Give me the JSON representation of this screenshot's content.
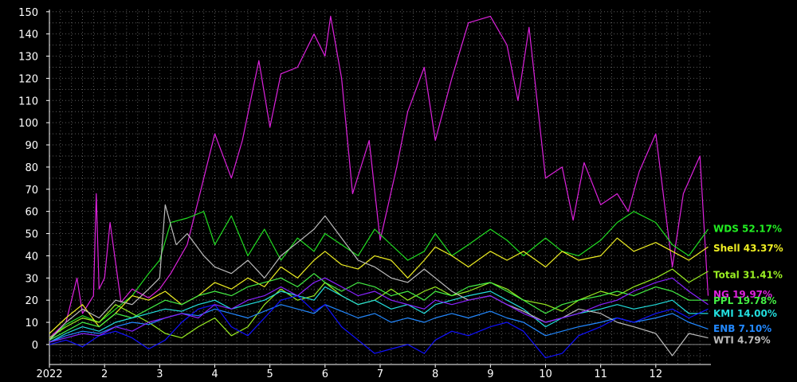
{
  "chart_data": {
    "type": "line",
    "title": "",
    "xlabel": "",
    "ylabel": "",
    "ylim": [
      -9,
      151
    ],
    "xlim": [
      0,
      12
    ],
    "grid": true,
    "legend_position": "right",
    "background": "#000000",
    "y_ticks": [
      0,
      10,
      20,
      30,
      40,
      50,
      60,
      70,
      80,
      90,
      100,
      110,
      120,
      130,
      140,
      150
    ],
    "x_ticks": [
      {
        "label": "2022",
        "x": 0
      },
      {
        "label": "2",
        "x": 1
      },
      {
        "label": "3",
        "x": 2
      },
      {
        "label": "4",
        "x": 3
      },
      {
        "label": "5",
        "x": 4
      },
      {
        "label": "6",
        "x": 5
      },
      {
        "label": "7",
        "x": 6
      },
      {
        "label": "8",
        "x": 7
      },
      {
        "label": "9",
        "x": 8
      },
      {
        "label": "10",
        "x": 9
      },
      {
        "label": "11",
        "x": 10
      },
      {
        "label": "12",
        "x": 11
      }
    ],
    "series": [
      {
        "name": "NG",
        "color": "#dd22dd",
        "x": [
          0,
          0.3,
          0.5,
          0.6,
          0.8,
          0.85,
          0.9,
          1.0,
          1.1,
          1.3,
          1.5,
          1.8,
          2.0,
          2.2,
          2.5,
          2.8,
          3.0,
          3.3,
          3.5,
          3.8,
          4.0,
          4.2,
          4.5,
          4.8,
          5.0,
          5.1,
          5.3,
          5.5,
          5.8,
          6.0,
          6.3,
          6.5,
          6.8,
          7.0,
          7.3,
          7.6,
          8.0,
          8.3,
          8.5,
          8.7,
          9.0,
          9.3,
          9.5,
          9.7,
          10.0,
          10.3,
          10.5,
          10.7,
          11.0,
          11.3,
          11.5,
          11.8,
          11.95
        ],
        "y": [
          3,
          10,
          30,
          14,
          22,
          68,
          25,
          30,
          55,
          19,
          25,
          21,
          25,
          32,
          45,
          75,
          95,
          75,
          92,
          128,
          98,
          122,
          125,
          140,
          130,
          148,
          120,
          68,
          92,
          47,
          80,
          105,
          125,
          92,
          120,
          145,
          148,
          135,
          110,
          143,
          75,
          80,
          56,
          82,
          63,
          68,
          60,
          78,
          95,
          35,
          68,
          85,
          22
        ]
      },
      {
        "name": "WDS",
        "color": "#22dd22",
        "x": [
          0,
          0.3,
          0.6,
          0.9,
          1.2,
          1.5,
          1.8,
          2.0,
          2.2,
          2.5,
          2.8,
          3.0,
          3.3,
          3.6,
          3.9,
          4.2,
          4.5,
          4.8,
          5.0,
          5.3,
          5.6,
          5.9,
          6.2,
          6.5,
          6.8,
          7.0,
          7.3,
          7.6,
          8.0,
          8.3,
          8.6,
          9.0,
          9.3,
          9.6,
          10.0,
          10.3,
          10.6,
          11.0,
          11.3,
          11.6,
          11.95
        ],
        "y": [
          2,
          9,
          13,
          10,
          16,
          22,
          32,
          38,
          55,
          57,
          60,
          45,
          58,
          40,
          52,
          38,
          48,
          42,
          50,
          45,
          40,
          52,
          45,
          38,
          42,
          50,
          40,
          45,
          52,
          47,
          40,
          48,
          42,
          40,
          47,
          55,
          60,
          55,
          45,
          40,
          52
        ]
      },
      {
        "name": "Shell",
        "color": "#eeee22",
        "x": [
          0,
          0.3,
          0.6,
          0.9,
          1.2,
          1.5,
          1.8,
          2.1,
          2.4,
          2.7,
          3.0,
          3.3,
          3.6,
          3.9,
          4.2,
          4.5,
          4.8,
          5.0,
          5.3,
          5.6,
          5.9,
          6.2,
          6.5,
          6.8,
          7.0,
          7.3,
          7.6,
          8.0,
          8.3,
          8.6,
          9.0,
          9.3,
          9.6,
          10.0,
          10.3,
          10.6,
          11.0,
          11.3,
          11.6,
          11.95
        ],
        "y": [
          5,
          12,
          18,
          8,
          14,
          22,
          20,
          24,
          18,
          22,
          28,
          25,
          30,
          26,
          35,
          30,
          38,
          42,
          36,
          34,
          40,
          38,
          30,
          38,
          44,
          40,
          35,
          42,
          38,
          42,
          35,
          42,
          38,
          40,
          48,
          42,
          46,
          42,
          38,
          44
        ]
      },
      {
        "name": "Total",
        "color": "#99ee22",
        "x": [
          0,
          0.3,
          0.6,
          0.9,
          1.2,
          1.5,
          1.8,
          2.1,
          2.4,
          2.7,
          3.0,
          3.3,
          3.6,
          3.9,
          4.2,
          4.5,
          4.8,
          5.0,
          5.3,
          5.6,
          5.9,
          6.2,
          6.5,
          6.8,
          7.0,
          7.3,
          7.6,
          8.0,
          8.3,
          8.6,
          9.0,
          9.3,
          9.6,
          10.0,
          10.3,
          10.6,
          11.0,
          11.3,
          11.6,
          11.95
        ],
        "y": [
          3,
          8,
          12,
          10,
          18,
          14,
          10,
          5,
          3,
          8,
          12,
          4,
          8,
          18,
          25,
          20,
          22,
          28,
          22,
          18,
          20,
          25,
          20,
          24,
          26,
          22,
          24,
          28,
          25,
          20,
          18,
          15,
          20,
          24,
          22,
          26,
          30,
          34,
          28,
          33
        ]
      },
      {
        "name": "PPL",
        "color": "#44ee44",
        "x": [
          0,
          0.3,
          0.6,
          0.9,
          1.2,
          1.5,
          1.8,
          2.1,
          2.4,
          2.7,
          3.0,
          3.3,
          3.6,
          3.9,
          4.2,
          4.5,
          4.8,
          5.0,
          5.3,
          5.6,
          5.9,
          6.2,
          6.5,
          6.8,
          7.0,
          7.3,
          7.6,
          8.0,
          8.3,
          8.6,
          9.0,
          9.3,
          9.6,
          10.0,
          10.3,
          10.6,
          11.0,
          11.3,
          11.6,
          11.95
        ],
        "y": [
          2,
          6,
          10,
          8,
          14,
          12,
          16,
          20,
          18,
          22,
          24,
          22,
          26,
          28,
          30,
          26,
          32,
          28,
          24,
          28,
          26,
          22,
          24,
          20,
          24,
          22,
          26,
          28,
          24,
          20,
          14,
          18,
          20,
          22,
          24,
          22,
          26,
          24,
          20,
          20
        ]
      },
      {
        "name": "KMI",
        "color": "#22dddd",
        "x": [
          0,
          0.3,
          0.6,
          0.9,
          1.2,
          1.5,
          1.8,
          2.1,
          2.4,
          2.7,
          3.0,
          3.3,
          3.6,
          3.9,
          4.2,
          4.5,
          4.8,
          5.0,
          5.3,
          5.6,
          5.9,
          6.2,
          6.5,
          6.8,
          7.0,
          7.3,
          7.6,
          8.0,
          8.3,
          8.6,
          9.0,
          9.3,
          9.6,
          10.0,
          10.3,
          10.6,
          11.0,
          11.3,
          11.6,
          11.95
        ],
        "y": [
          1,
          5,
          8,
          6,
          10,
          12,
          14,
          16,
          15,
          18,
          20,
          16,
          18,
          20,
          24,
          22,
          20,
          26,
          22,
          18,
          20,
          16,
          18,
          14,
          18,
          20,
          22,
          24,
          20,
          16,
          8,
          12,
          14,
          16,
          18,
          16,
          18,
          20,
          14,
          14
        ]
      },
      {
        "name": "ENB",
        "color": "#2288ff",
        "x": [
          0,
          0.3,
          0.6,
          0.9,
          1.2,
          1.5,
          1.8,
          2.1,
          2.4,
          2.7,
          3.0,
          3.3,
          3.6,
          3.9,
          4.2,
          4.5,
          4.8,
          5.0,
          5.3,
          5.6,
          5.9,
          6.2,
          6.5,
          6.8,
          7.0,
          7.3,
          7.6,
          8.0,
          8.3,
          8.6,
          9.0,
          9.3,
          9.6,
          10.0,
          10.3,
          10.6,
          11.0,
          11.3,
          11.6,
          11.95
        ],
        "y": [
          1,
          4,
          6,
          5,
          8,
          10,
          9,
          12,
          14,
          13,
          16,
          14,
          12,
          15,
          18,
          16,
          14,
          18,
          15,
          12,
          14,
          10,
          12,
          10,
          12,
          14,
          12,
          15,
          12,
          10,
          4,
          6,
          8,
          10,
          12,
          10,
          12,
          14,
          10,
          7
        ]
      },
      {
        "name": "WTI",
        "color": "#bbbbbb",
        "x": [
          0,
          0.3,
          0.6,
          0.9,
          1.2,
          1.5,
          1.8,
          2.0,
          2.1,
          2.3,
          2.5,
          2.8,
          3.0,
          3.3,
          3.6,
          3.9,
          4.2,
          4.5,
          4.8,
          5.0,
          5.3,
          5.6,
          5.9,
          6.2,
          6.5,
          6.8,
          7.0,
          7.3,
          7.6,
          8.0,
          8.3,
          8.6,
          9.0,
          9.3,
          9.6,
          10.0,
          10.3,
          10.6,
          11.0,
          11.3,
          11.6,
          11.95
        ],
        "y": [
          2,
          10,
          16,
          12,
          20,
          18,
          25,
          30,
          63,
          45,
          50,
          40,
          35,
          32,
          38,
          30,
          40,
          46,
          52,
          58,
          48,
          38,
          35,
          30,
          28,
          34,
          30,
          24,
          20,
          22,
          18,
          15,
          10,
          12,
          16,
          14,
          10,
          8,
          5,
          -5,
          5,
          3
        ]
      },
      {
        "name": "",
        "color": "#1111ff",
        "x": [
          0,
          0.3,
          0.6,
          0.9,
          1.2,
          1.5,
          1.8,
          2.1,
          2.4,
          2.7,
          3.0,
          3.3,
          3.6,
          3.9,
          4.2,
          4.5,
          4.8,
          5.0,
          5.3,
          5.6,
          5.9,
          6.2,
          6.5,
          6.8,
          7.0,
          7.3,
          7.6,
          8.0,
          8.3,
          8.6,
          9.0,
          9.3,
          9.6,
          10.0,
          10.3,
          10.6,
          11.0,
          11.3,
          11.6,
          11.95
        ],
        "y": [
          0,
          2,
          -1,
          4,
          6,
          3,
          -2,
          2,
          10,
          16,
          18,
          8,
          4,
          12,
          20,
          22,
          15,
          18,
          8,
          2,
          -4,
          -2,
          0,
          -4,
          2,
          6,
          4,
          8,
          10,
          6,
          -6,
          -4,
          4,
          8,
          12,
          10,
          14,
          16,
          12,
          16
        ]
      },
      {
        "name": "",
        "color": "#8822ff",
        "x": [
          0,
          0.3,
          0.6,
          0.9,
          1.2,
          1.5,
          1.8,
          2.1,
          2.4,
          2.7,
          3.0,
          3.3,
          3.6,
          3.9,
          4.2,
          4.5,
          4.8,
          5.0,
          5.3,
          5.6,
          5.9,
          6.2,
          6.5,
          6.8,
          7.0,
          7.3,
          7.6,
          8.0,
          8.3,
          8.6,
          9.0,
          9.3,
          9.6,
          10.0,
          10.3,
          10.6,
          11.0,
          11.3,
          11.6,
          11.95
        ],
        "y": [
          1,
          3,
          5,
          4,
          8,
          6,
          10,
          12,
          14,
          12,
          18,
          16,
          20,
          22,
          26,
          22,
          28,
          30,
          26,
          22,
          24,
          20,
          18,
          16,
          20,
          18,
          20,
          22,
          18,
          14,
          10,
          12,
          14,
          18,
          20,
          24,
          28,
          30,
          24,
          18
        ]
      }
    ],
    "legend": [
      {
        "label": "WDS 52.17%",
        "color": "#22ee22",
        "y": 52.17
      },
      {
        "label": "Shell 43.37%",
        "color": "#eeee22",
        "y": 43.37
      },
      {
        "label": "Total 31.41%",
        "color": "#99ee22",
        "y": 31.41
      },
      {
        "label": "NG 19.97%",
        "color": "#dd22dd",
        "y": 22.5
      },
      {
        "label": "PPL 19.78%",
        "color": "#44ee44",
        "y": 19.78
      },
      {
        "label": "KMI 14.00%",
        "color": "#22dddd",
        "y": 14.0
      },
      {
        "label": "ENB  7.10%",
        "color": "#2288ff",
        "y": 7.1
      },
      {
        "label": "WTI  4.79%",
        "color": "#bbbbbb",
        "y": 2.0
      }
    ]
  }
}
